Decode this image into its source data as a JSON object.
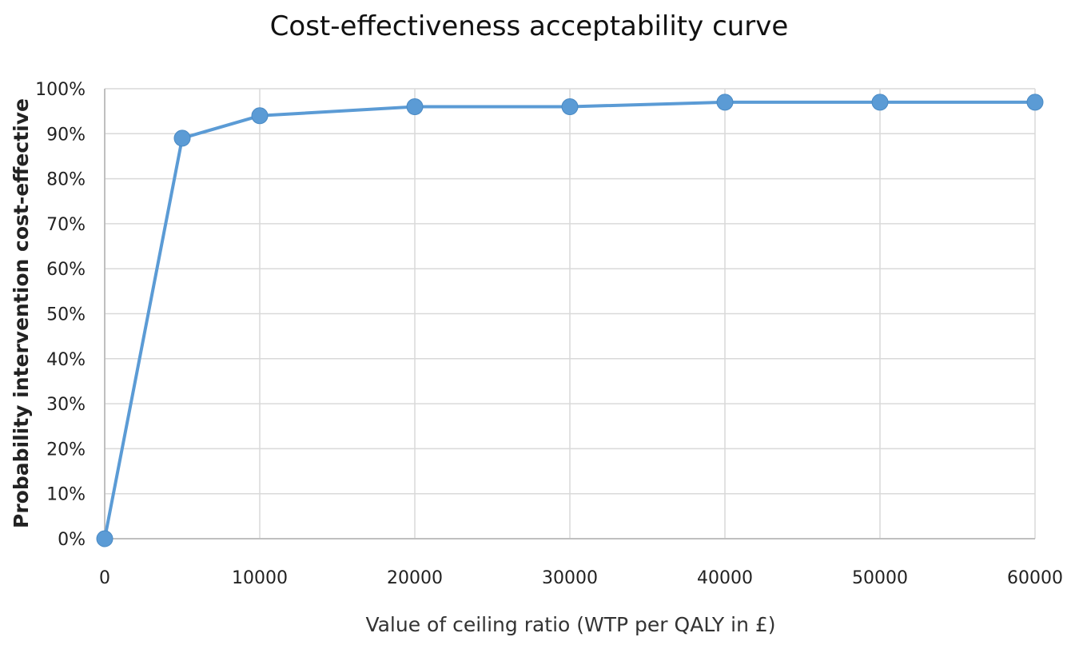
{
  "chart_data": {
    "type": "line",
    "title": "Cost-effectiveness  acceptability curve",
    "xlabel": "Value of ceiling ratio (WTP per QALY in £)",
    "ylabel": "Probability intervention cost-effective",
    "xlim": [
      0,
      60000
    ],
    "ylim": [
      0,
      100
    ],
    "x_ticks": [
      "0",
      "10000",
      "20000",
      "30000",
      "40000",
      "50000",
      "60000"
    ],
    "y_ticks": [
      "0%",
      "10%",
      "20%",
      "30%",
      "40%",
      "50%",
      "60%",
      "70%",
      "80%",
      "90%",
      "100%"
    ],
    "grid": true,
    "series": [
      {
        "x": [
          0,
          5000,
          10000,
          20000,
          30000,
          40000,
          50000,
          60000
        ],
        "values": [
          0,
          89,
          94,
          96,
          96,
          97,
          97,
          97
        ],
        "color": "#5b9bd5"
      }
    ]
  }
}
